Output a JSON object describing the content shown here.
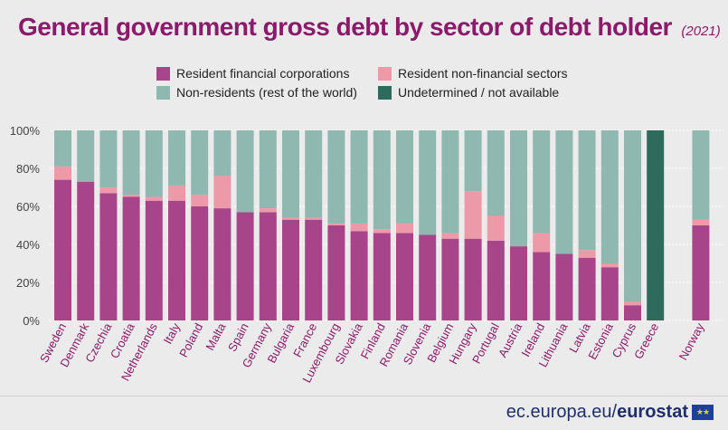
{
  "header": {
    "title": "General government gross debt by sector of debt holder",
    "subtitle": "(2021)"
  },
  "legend": [
    {
      "label": "Resident financial corporations",
      "color": "#a8448a"
    },
    {
      "label": "Resident non-financial sectors",
      "color": "#ec9aa8"
    },
    {
      "label": "Non-residents (rest of the world)",
      "color": "#8fb9b0"
    },
    {
      "label": "Undetermined / not available",
      "color": "#2e6b5d"
    }
  ],
  "footer": {
    "source_prefix": "ec.europa.eu/",
    "source_brand": "eurostat"
  },
  "chart_data": {
    "type": "bar",
    "stacked": true,
    "ylim": [
      0,
      100
    ],
    "yticks": [
      0,
      20,
      40,
      60,
      80,
      100
    ],
    "ytick_labels": [
      "0%",
      "20%",
      "40%",
      "60%",
      "80%",
      "100%"
    ],
    "categories": [
      "Sweden",
      "Denmark",
      "Czechia",
      "Croatia",
      "Netherlands",
      "Italy",
      "Poland",
      "Malta",
      "Spain",
      "Germany",
      "Bulgaria",
      "France",
      "Luxembourg",
      "Slovakia",
      "Finland",
      "Romania",
      "Slovenia",
      "Belgium",
      "Hungary",
      "Portugal",
      "Austria",
      "Ireland",
      "Lithuania",
      "Latvia",
      "Estonia",
      "Cyprus",
      "Greece",
      "Norway"
    ],
    "series": [
      {
        "name": "Resident financial corporations",
        "color": "#a8448a",
        "values": [
          74,
          73,
          67,
          65,
          63,
          63,
          60,
          59,
          57,
          57,
          53,
          53,
          50,
          47,
          46,
          46,
          45,
          43,
          43,
          42,
          39,
          36,
          35,
          33,
          28,
          8,
          0,
          50
        ]
      },
      {
        "name": "Resident non-financial sectors",
        "color": "#ec9aa8",
        "values": [
          7,
          0,
          3,
          1,
          2,
          8,
          6,
          17,
          0,
          2,
          1,
          1,
          1,
          4,
          2,
          5,
          0,
          3,
          25,
          13,
          0,
          10,
          0,
          4,
          2,
          2,
          0,
          3
        ]
      },
      {
        "name": "Non-residents (rest of the world)",
        "color": "#8fb9b0",
        "values": [
          19,
          27,
          30,
          34,
          35,
          29,
          34,
          24,
          43,
          41,
          46,
          46,
          49,
          49,
          52,
          49,
          55,
          54,
          32,
          45,
          61,
          54,
          65,
          63,
          70,
          90,
          0,
          47
        ]
      },
      {
        "name": "Undetermined / not available",
        "color": "#2e6b5d",
        "values": [
          0,
          0,
          0,
          0,
          0,
          0,
          0,
          0,
          0,
          0,
          0,
          0,
          0,
          0,
          0,
          0,
          0,
          0,
          0,
          0,
          0,
          0,
          0,
          0,
          0,
          0,
          100,
          0
        ]
      }
    ],
    "xlabel": "",
    "ylabel": "",
    "legend_position": "top"
  }
}
